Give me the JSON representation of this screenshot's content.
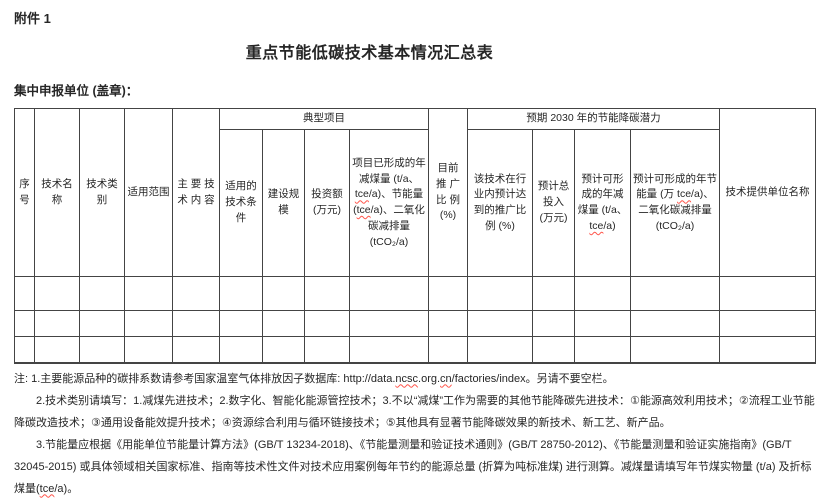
{
  "page": {
    "attachment_label": "附件 1",
    "title": "重点节能低碳技术基本情况汇总表",
    "declarer_label": "集中申报单位 (盖章)："
  },
  "table": {
    "groups": {
      "typical_project": "典型项目",
      "potential_2030": "预期 2030 年的节能降碳潜力"
    },
    "columns": {
      "seq": "序号",
      "tech_name": "技术名称",
      "tech_category": "技术类别",
      "scope": "适用范围",
      "main_content": "主 要 技 术 内 容",
      "applicable_conditions": "适用的技术条件",
      "construction_scale": "建设规模",
      "investment": "投资额 (万元)",
      "project_formed": [
        [
          "项目已形成的年减煤量 (t/a、",
          false
        ],
        [
          "tce",
          true
        ],
        [
          "/a)、节能量(",
          false
        ],
        [
          "tce",
          true
        ],
        [
          "/a)、二氧化碳减排量 (tCO₂/a)",
          false
        ]
      ],
      "current_promotion": "目前 推 广 比 例 (%)",
      "expected_promotion": "该技术在行业内预计达到的推广比例 (%)",
      "expected_investment": "预计总投入 (万元)",
      "expected_coal_reduction": [
        [
          "预计可形成的年减煤量 (t/a、",
          false
        ],
        [
          "tce",
          true
        ],
        [
          "/a)",
          false
        ]
      ],
      "expected_savings": [
        [
          "预计可形成的年节能量 (万 ",
          false
        ],
        [
          "tce",
          true
        ],
        [
          "/a)、二氧化碳减排量 (tCO₂/a)",
          false
        ]
      ],
      "provider": "技术提供单位名称"
    },
    "body_rows": [
      [
        "",
        "",
        "",
        "",
        "",
        "",
        "",
        "",
        "",
        "",
        "",
        "",
        "",
        "",
        ""
      ],
      [
        "",
        "",
        "",
        "",
        "",
        "",
        "",
        "",
        "",
        "",
        "",
        "",
        "",
        "",
        ""
      ],
      [
        "",
        "",
        "",
        "",
        "",
        "",
        "",
        "",
        "",
        "",
        "",
        "",
        "",
        "",
        ""
      ]
    ]
  },
  "notes": {
    "note1_prefix": "注: 1.主要能源品种的碳排系数请参考国家温室气体排放因子数据库: ",
    "note1_url": [
      [
        "http://data.",
        false
      ],
      [
        "ncsc",
        true
      ],
      [
        ".org.",
        false
      ],
      [
        "cn",
        true
      ],
      [
        "/factories/index",
        false
      ]
    ],
    "note1_suffix": "。另请不要空栏。",
    "note2": "2.技术类别请填写：1.减煤先进技术；2.数字化、智能化能源管控技术；3.不以“减煤”工作为需要的其他节能降碳先进技术：①能源高效利用技术；②流程工业节能降碳改造技术；③通用设备能效提升技术；④资源综合利用与循环链接技术；⑤其他具有显著节能降碳效果的新技术、新工艺、新产品。",
    "note3": [
      [
        "3.节能量应根据《用能单位节能量计算方法》(GB/T 13234-2018)、《节能量测量和验证技术通则》(GB/T 28750-2012)、《节能量测量和验证实施指南》(GB/T 32045-2015) 或具体领域相关国家标准、指南等技术性文件对技术应用案例每年节约的能源总量 (折算为吨标准煤) 进行测算。减煤量请填写年节煤实物量 (t/a) 及折标煤量(",
        false
      ],
      [
        "tce",
        true
      ],
      [
        "/a)。",
        false
      ]
    ]
  }
}
